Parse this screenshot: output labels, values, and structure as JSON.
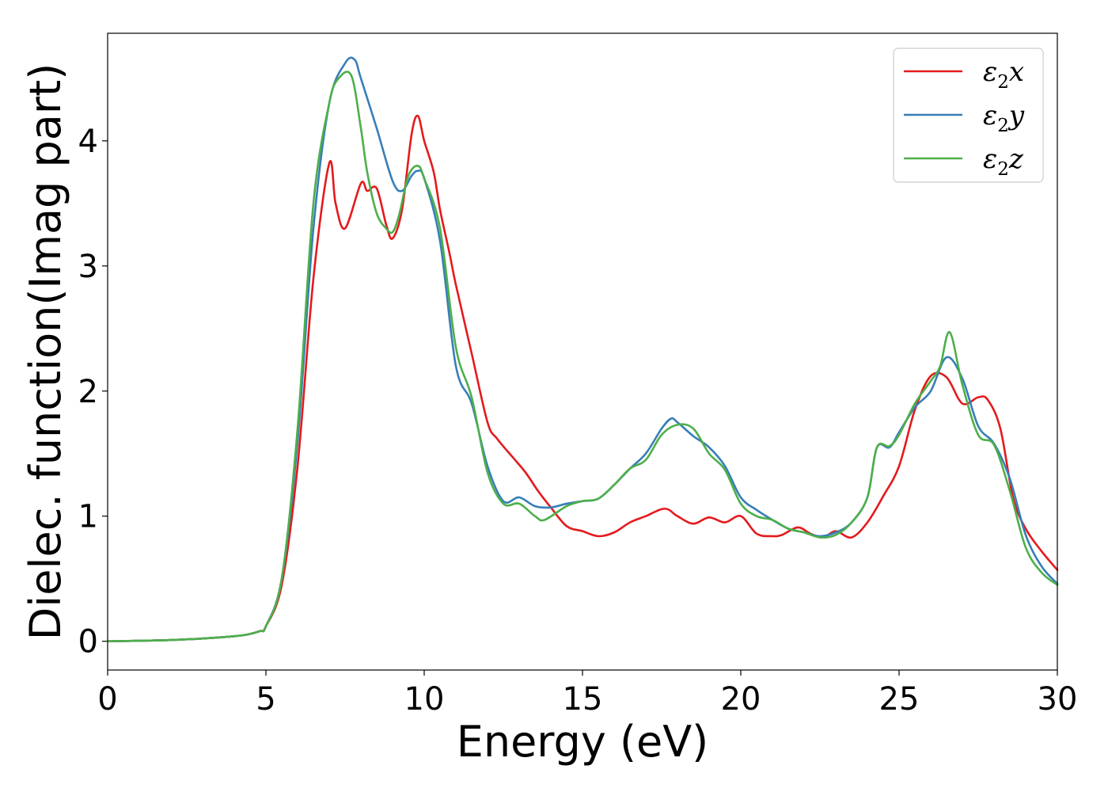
{
  "chart_data": {
    "type": "line",
    "title": "",
    "xlabel": "Energy (eV)",
    "ylabel": "Dielec. function(Imag part)",
    "xlim": [
      0,
      30
    ],
    "ylim": [
      -0.23,
      4.86
    ],
    "xticks": [
      "0",
      "5",
      "10",
      "15",
      "20",
      "25",
      "30"
    ],
    "yticks": [
      "0",
      "1",
      "2",
      "3",
      "4"
    ],
    "grid": false,
    "legend_position": "top-right",
    "series": [
      {
        "name": "ε₂x",
        "label_main": "ε",
        "label_sub": "2",
        "label_tail": "x",
        "color": "#e41a1c",
        "x": [
          0,
          2,
          4,
          4.8,
          5.0,
          5.5,
          6.0,
          6.5,
          7.0,
          7.2,
          7.5,
          8.0,
          8.2,
          8.5,
          8.8,
          9.0,
          9.3,
          9.6,
          9.8,
          10.0,
          10.3,
          10.5,
          10.8,
          11.0,
          11.5,
          12.0,
          12.3,
          12.8,
          13.2,
          13.6,
          14.0,
          14.5,
          15.0,
          15.5,
          16.0,
          16.5,
          17.0,
          17.6,
          18.0,
          18.5,
          19.0,
          19.5,
          20.0,
          20.5,
          21.0,
          21.3,
          21.8,
          22.2,
          22.6,
          23.0,
          23.5,
          24.0,
          24.5,
          25.0,
          25.5,
          26.0,
          26.5,
          27.0,
          27.5,
          27.8,
          28.2,
          28.6,
          29.0,
          29.5,
          30.0
        ],
        "values": [
          0.0,
          0.01,
          0.04,
          0.08,
          0.12,
          0.45,
          1.4,
          2.9,
          3.82,
          3.5,
          3.3,
          3.66,
          3.6,
          3.62,
          3.33,
          3.22,
          3.45,
          4.05,
          4.2,
          4.0,
          3.75,
          3.45,
          3.1,
          2.85,
          2.3,
          1.75,
          1.62,
          1.47,
          1.35,
          1.2,
          1.07,
          0.92,
          0.88,
          0.84,
          0.87,
          0.95,
          1.0,
          1.06,
          1.0,
          0.94,
          0.99,
          0.95,
          1.0,
          0.86,
          0.84,
          0.85,
          0.91,
          0.86,
          0.83,
          0.88,
          0.83,
          0.95,
          1.16,
          1.4,
          1.85,
          2.12,
          2.11,
          1.9,
          1.95,
          1.93,
          1.7,
          1.15,
          0.9,
          0.72,
          0.57
        ]
      },
      {
        "name": "ε₂y",
        "label_main": "ε",
        "label_sub": "2",
        "label_tail": "y",
        "color": "#377eb8",
        "x": [
          0,
          2,
          4,
          4.8,
          5.0,
          5.5,
          6.0,
          6.5,
          7.0,
          7.5,
          7.8,
          8.0,
          8.5,
          9.0,
          9.3,
          9.6,
          9.8,
          10.0,
          10.5,
          11.0,
          11.5,
          12.0,
          12.5,
          13.0,
          13.5,
          14.0,
          14.5,
          15.0,
          15.5,
          16.0,
          16.5,
          17.0,
          17.5,
          17.8,
          18.0,
          18.5,
          19.0,
          19.5,
          20.0,
          20.5,
          21.0,
          21.5,
          22.0,
          22.5,
          23.0,
          23.5,
          24.0,
          24.3,
          24.7,
          25.0,
          25.5,
          26.0,
          26.5,
          27.0,
          27.5,
          28.0,
          28.5,
          29.0,
          29.5,
          30.0
        ],
        "values": [
          0.0,
          0.01,
          0.04,
          0.08,
          0.12,
          0.5,
          1.6,
          3.3,
          4.3,
          4.62,
          4.65,
          4.5,
          4.1,
          3.68,
          3.6,
          3.72,
          3.76,
          3.7,
          3.2,
          2.2,
          1.9,
          1.4,
          1.12,
          1.15,
          1.08,
          1.07,
          1.1,
          1.12,
          1.14,
          1.25,
          1.38,
          1.5,
          1.7,
          1.78,
          1.75,
          1.64,
          1.55,
          1.4,
          1.15,
          1.05,
          0.97,
          0.9,
          0.87,
          0.84,
          0.87,
          0.95,
          1.15,
          1.55,
          1.55,
          1.67,
          1.87,
          2.0,
          2.27,
          2.1,
          1.72,
          1.58,
          1.3,
          0.85,
          0.6,
          0.46
        ]
      },
      {
        "name": "ε₂z",
        "label_main": "ε",
        "label_sub": "2",
        "label_tail": "z",
        "color": "#4daf4a",
        "x": [
          0,
          2,
          4,
          4.8,
          5.0,
          5.5,
          6.0,
          6.5,
          7.0,
          7.3,
          7.7,
          8.0,
          8.2,
          8.5,
          8.8,
          9.0,
          9.2,
          9.5,
          9.8,
          10.0,
          10.5,
          11.0,
          11.5,
          12.0,
          12.5,
          13.0,
          13.5,
          13.8,
          14.5,
          15.0,
          15.5,
          16.0,
          16.5,
          17.0,
          17.5,
          18.0,
          18.5,
          19.0,
          19.5,
          20.0,
          20.5,
          21.0,
          21.5,
          22.0,
          22.5,
          23.0,
          23.5,
          24.0,
          24.3,
          24.7,
          25.0,
          25.5,
          26.0,
          26.3,
          26.6,
          27.0,
          27.5,
          28.0,
          28.5,
          29.0,
          29.5,
          30.0
        ],
        "values": [
          0.0,
          0.01,
          0.04,
          0.08,
          0.12,
          0.5,
          1.7,
          3.5,
          4.3,
          4.5,
          4.52,
          4.1,
          3.75,
          3.42,
          3.3,
          3.27,
          3.4,
          3.72,
          3.8,
          3.7,
          3.3,
          2.35,
          1.95,
          1.35,
          1.1,
          1.1,
          1.0,
          0.97,
          1.08,
          1.12,
          1.14,
          1.25,
          1.38,
          1.45,
          1.65,
          1.73,
          1.7,
          1.5,
          1.37,
          1.1,
          1.0,
          0.97,
          0.9,
          0.87,
          0.83,
          0.85,
          0.95,
          1.15,
          1.55,
          1.56,
          1.65,
          1.9,
          2.08,
          2.2,
          2.47,
          2.05,
          1.65,
          1.57,
          1.2,
          0.75,
          0.55,
          0.45
        ]
      }
    ]
  }
}
